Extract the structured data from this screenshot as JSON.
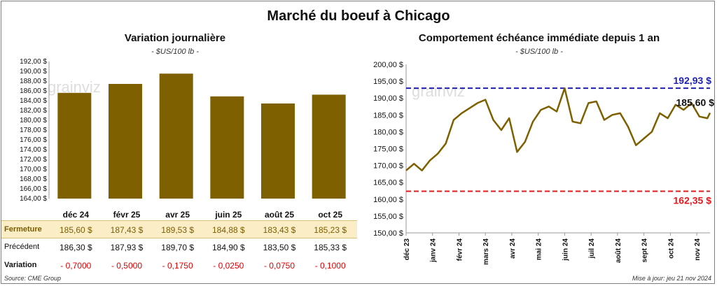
{
  "title": "Marché du boeuf à Chicago",
  "source": "Source: CME Group",
  "updated": "Mise à jour: jeu 21 nov 2024",
  "watermark": "grainviz",
  "colors": {
    "bar": "#7f6000",
    "line": "#7f6000",
    "high": "#1f1fb4",
    "low": "#e31a1c",
    "negative": "#e00000"
  },
  "table": {
    "row_labels": {
      "fermeture": "Fermeture",
      "precedent": "Précédent",
      "variation": "Variation"
    },
    "months": [
      "déc 24",
      "févr 25",
      "avr 25",
      "juin 25",
      "août 25",
      "oct 25"
    ],
    "fermeture": [
      "185,60  $",
      "187,43  $",
      "189,53  $",
      "184,88  $",
      "183,43  $",
      "185,23  $"
    ],
    "precedent": [
      "186,30  $",
      "187,93  $",
      "189,70  $",
      "184,90  $",
      "183,50  $",
      "185,33  $"
    ],
    "variation": [
      "- 0,7000",
      "- 0,5000",
      "- 0,1750",
      "- 0,0250",
      "- 0,0750",
      "- 0,1000"
    ]
  },
  "chart_data": [
    {
      "type": "bar",
      "title": "Variation journalière",
      "subtitle": "- $US/100 lb -",
      "categories": [
        "déc 24",
        "févr 25",
        "avr 25",
        "juin 25",
        "août 25",
        "oct 25"
      ],
      "values": [
        185.6,
        187.43,
        189.53,
        184.88,
        183.43,
        185.23
      ],
      "ylim": [
        164,
        192
      ],
      "yticks": [
        "164,00 $",
        "166,00 $",
        "168,00 $",
        "170,00 $",
        "172,00 $",
        "174,00 $",
        "176,00 $",
        "178,00 $",
        "180,00 $",
        "182,00 $",
        "184,00 $",
        "186,00 $",
        "188,00 $",
        "190,00 $",
        "192,00 $"
      ],
      "grid": false
    },
    {
      "type": "line",
      "title": "Comportement  échéance immédiate depuis 1 an",
      "subtitle": "- $US/100 lb -",
      "ylim": [
        150,
        200
      ],
      "yticks": [
        "150,00 $",
        "155,00 $",
        "160,00 $",
        "165,00 $",
        "170,00 $",
        "175,00 $",
        "180,00 $",
        "185,00 $",
        "190,00 $",
        "195,00 $",
        "200,00 $"
      ],
      "xticks": [
        "déc 23",
        "janv 24",
        "févr 24",
        "mars 24",
        "avr 24",
        "mai 24",
        "juin 24",
        "juil 24",
        "août 24",
        "sept 24",
        "oct 24",
        "nov 24"
      ],
      "high": 192.93,
      "high_label": "192,93 $",
      "low": 162.35,
      "low_label": "162,35 $",
      "last_label": "185,60 $",
      "series": [
        {
          "x": [
            0,
            0.3,
            0.6,
            0.9,
            1.2,
            1.5,
            1.8,
            2.1,
            2.4,
            2.7,
            3.0,
            3.3,
            3.6,
            3.9,
            4.2,
            4.5,
            4.8,
            5.1,
            5.4,
            5.7,
            6.0,
            6.3,
            6.6,
            6.9,
            7.2,
            7.5,
            7.8,
            8.1,
            8.4,
            8.7,
            9.0,
            9.3,
            9.6,
            9.9,
            10.2,
            10.5,
            10.8,
            11.1,
            11.4,
            11.5
          ],
          "values": [
            168.5,
            170.5,
            168.5,
            171.5,
            173.5,
            176.5,
            183.5,
            185.5,
            187.0,
            188.5,
            189.5,
            183.5,
            180.5,
            184.0,
            174.0,
            177.0,
            183.0,
            186.5,
            187.5,
            186.0,
            192.9,
            183.0,
            182.5,
            188.5,
            189.0,
            183.5,
            185.0,
            185.5,
            181.5,
            176.0,
            178.0,
            180.0,
            185.5,
            184.0,
            188.0,
            186.5,
            188.5,
            184.5,
            184.0,
            185.6
          ]
        }
      ]
    }
  ]
}
